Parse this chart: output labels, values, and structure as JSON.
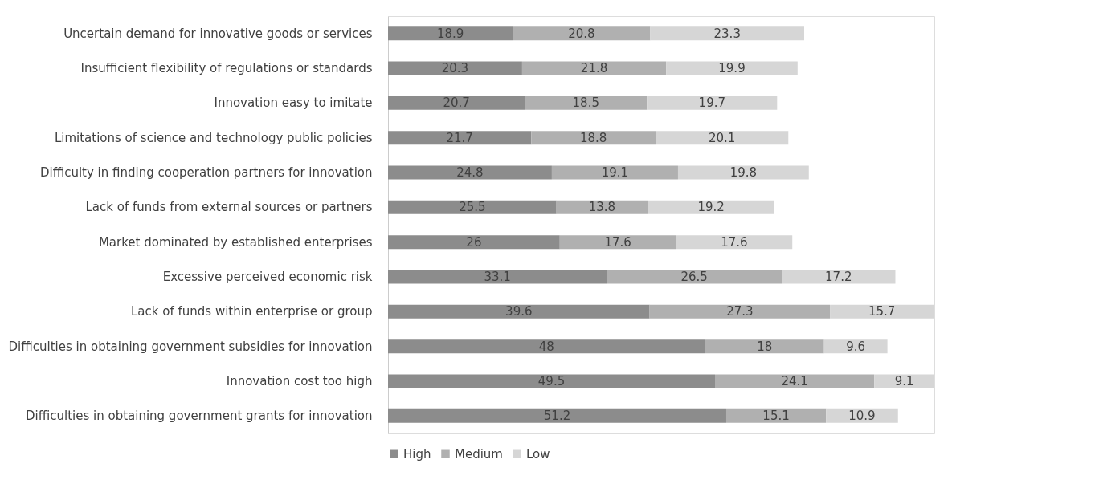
{
  "chart_data": {
    "type": "bar",
    "orientation": "horizontal",
    "stacked": true,
    "data_labels": true,
    "legend": "bottom",
    "xlim": [
      0,
      82.7
    ],
    "categories": [
      "Uncertain demand for innovative goods or services",
      "Insufficient flexibility of regulations or standards",
      "Innovation easy to imitate",
      "Limitations of science and technology public policies",
      "Difficulty in finding cooperation partners for innovation",
      "Lack of funds from external sources or partners",
      "Market dominated by established enterprises",
      "Excessive perceived economic risk",
      "Lack of funds within enterprise or group",
      "Difficulties in obtaining government subsidies for innovation",
      "Innovation cost too high",
      "Difficulties in obtaining government grants for innovation"
    ],
    "series": [
      {
        "name": "High",
        "color": "#8c8c8c",
        "values": [
          18.9,
          20.3,
          20.7,
          21.7,
          24.8,
          25.5,
          26,
          33.1,
          39.6,
          48,
          49.5,
          51.2
        ]
      },
      {
        "name": "Medium",
        "color": "#b0b0b0",
        "values": [
          20.8,
          21.8,
          18.5,
          18.8,
          19.1,
          13.8,
          17.6,
          26.5,
          27.3,
          18,
          24.1,
          15.1
        ]
      },
      {
        "name": "Low",
        "color": "#d6d6d6",
        "values": [
          23.3,
          19.9,
          19.7,
          20.1,
          19.8,
          19.2,
          17.6,
          17.2,
          15.7,
          9.6,
          9.1,
          10.9
        ]
      }
    ]
  }
}
